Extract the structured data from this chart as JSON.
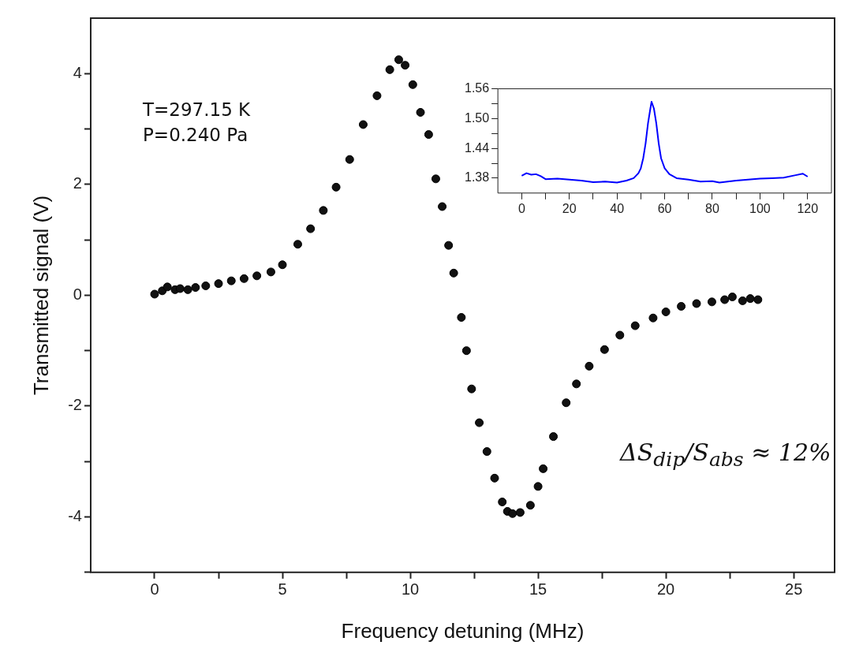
{
  "chart_data": [
    {
      "type": "scatter",
      "xlabel": "Frequency detuning (MHz)",
      "ylabel": "Transmitted signal (V)",
      "marker": "circle",
      "annotations": [
        "T=297.15 K",
        "P=0.240 Pa",
        "ΔS$_{dip}$/S$_{abs}$ ≈ 12%"
      ],
      "xlim": [
        -2.5,
        26.6
      ],
      "ylim": [
        -5,
        5
      ],
      "xticks": [
        0,
        {
          "value": 2.5,
          "label": null
        },
        5,
        {
          "value": 7.5,
          "label": null
        },
        10,
        {
          "value": 12.5,
          "label": null
        },
        15,
        {
          "value": 17.5,
          "label": null
        },
        20,
        {
          "value": 22.5,
          "label": null
        },
        25
      ],
      "yticks": [
        {
          "value": -5,
          "label": null
        },
        -4,
        {
          "value": -3,
          "label": null
        },
        -2,
        {
          "value": -1,
          "label": null
        },
        0,
        {
          "value": 1,
          "label": null
        },
        2,
        {
          "value": 3,
          "label": null
        },
        4
      ],
      "x": [
        0,
        0.3,
        0.5,
        0.8,
        1.0,
        1.3,
        1.6,
        2.0,
        2.5,
        3.0,
        3.5,
        4.0,
        4.55,
        5.0,
        5.6,
        6.1,
        6.6,
        7.1,
        7.63,
        8.16,
        8.7,
        9.2,
        9.55,
        9.8,
        10.1,
        10.4,
        10.72,
        11.0,
        11.25,
        11.5,
        11.7,
        12.0,
        12.2,
        12.4,
        12.7,
        13.0,
        13.3,
        13.6,
        13.8,
        14.0,
        14.3,
        14.7,
        15.0,
        15.2,
        15.6,
        16.1,
        16.5,
        17.0,
        17.6,
        18.2,
        18.8,
        19.5,
        20.0,
        20.6,
        21.2,
        21.8,
        22.3,
        22.6,
        23.0,
        23.3,
        23.6
      ],
      "series": [
        {
          "color": "#111111",
          "values": [
            0.02,
            0.08,
            0.15,
            0.1,
            0.12,
            0.1,
            0.14,
            0.17,
            0.21,
            0.26,
            0.3,
            0.35,
            0.42,
            0.55,
            0.92,
            1.2,
            1.53,
            1.95,
            2.45,
            3.08,
            3.6,
            4.07,
            4.25,
            4.15,
            3.8,
            3.3,
            2.9,
            2.1,
            1.6,
            0.9,
            0.4,
            -0.4,
            -1.0,
            -1.69,
            -2.3,
            -2.82,
            -3.3,
            -3.73,
            -3.9,
            -3.94,
            -3.92,
            -3.79,
            -3.45,
            -3.13,
            -2.55,
            -1.94,
            -1.6,
            -1.28,
            -0.98,
            -0.72,
            -0.55,
            -0.41,
            -0.3,
            -0.2,
            -0.15,
            -0.12,
            -0.08,
            -0.03,
            -0.1,
            -0.06,
            -0.08
          ]
        }
      ]
    },
    {
      "type": "line",
      "xlim": [
        -10,
        130
      ],
      "ylim": [
        1.35,
        1.56
      ],
      "xticks": [
        0,
        {
          "value": 10,
          "label": null
        },
        20,
        {
          "value": 30,
          "label": null
        },
        40,
        {
          "value": 50,
          "label": null
        },
        60,
        {
          "value": 70,
          "label": null
        },
        80,
        {
          "value": 90,
          "label": null
        },
        100,
        {
          "value": 110,
          "label": null
        },
        120
      ],
      "yticks": [
        1.38,
        {
          "value": 1.41,
          "label": null
        },
        1.44,
        {
          "value": 1.47,
          "label": null
        },
        {
          "value": 1.5,
          "label": "1.50"
        },
        {
          "value": 1.53,
          "label": null
        },
        1.56
      ],
      "x": [
        0,
        2,
        4,
        6,
        8,
        10,
        15,
        20,
        25,
        30,
        35,
        40,
        44,
        47,
        49,
        50,
        51,
        52,
        53,
        54,
        54.5,
        55.5,
        56.5,
        57.5,
        58.5,
        60,
        62,
        65,
        70,
        75,
        80,
        83,
        90,
        95,
        100,
        105,
        110,
        115,
        118,
        120
      ],
      "series": [
        {
          "color": "#0000ff",
          "values": [
            1.385,
            1.39,
            1.387,
            1.388,
            1.384,
            1.378,
            1.379,
            1.377,
            1.375,
            1.372,
            1.373,
            1.371,
            1.375,
            1.38,
            1.39,
            1.4,
            1.42,
            1.45,
            1.49,
            1.52,
            1.534,
            1.52,
            1.49,
            1.45,
            1.42,
            1.4,
            1.388,
            1.38,
            1.377,
            1.373,
            1.374,
            1.371,
            1.375,
            1.377,
            1.379,
            1.38,
            1.381,
            1.386,
            1.389,
            1.383
          ]
        }
      ]
    }
  ]
}
